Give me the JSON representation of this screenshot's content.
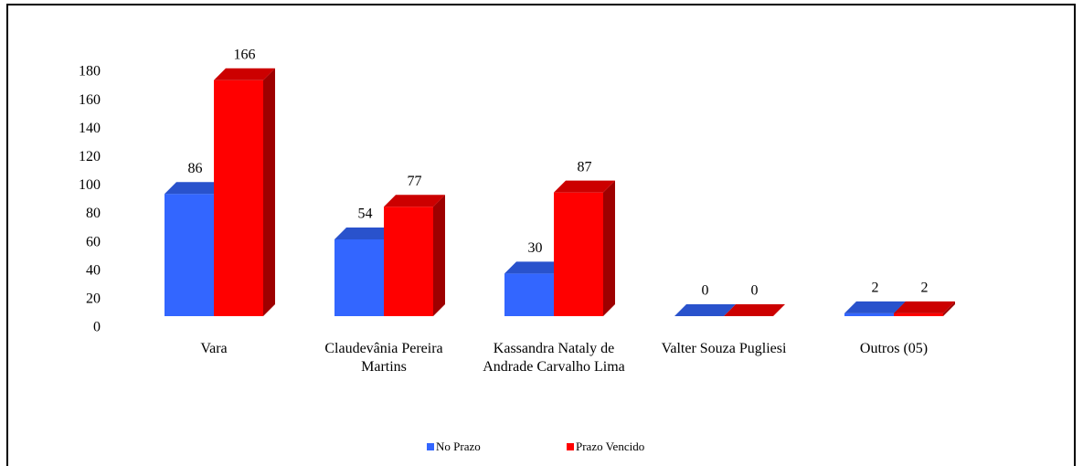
{
  "chart_data": {
    "type": "bar3d",
    "categories": [
      "Vara",
      "Claudevânia Pereira Martins",
      "Kassandra Nataly de Andrade Carvalho Lima",
      "Valter Souza Pugliesi",
      "Outros (05)"
    ],
    "series": [
      {
        "name": "No Prazo",
        "color": "#3366ff",
        "values": [
          86,
          54,
          30,
          0,
          2
        ]
      },
      {
        "name": "Prazo Vencido",
        "color": "#ff0000",
        "values": [
          166,
          77,
          87,
          0,
          2
        ]
      }
    ],
    "ylim": [
      0,
      180
    ],
    "yticks": [
      0,
      20,
      40,
      60,
      80,
      100,
      120,
      140,
      160,
      180
    ],
    "grid": false,
    "legend": "bottom"
  }
}
